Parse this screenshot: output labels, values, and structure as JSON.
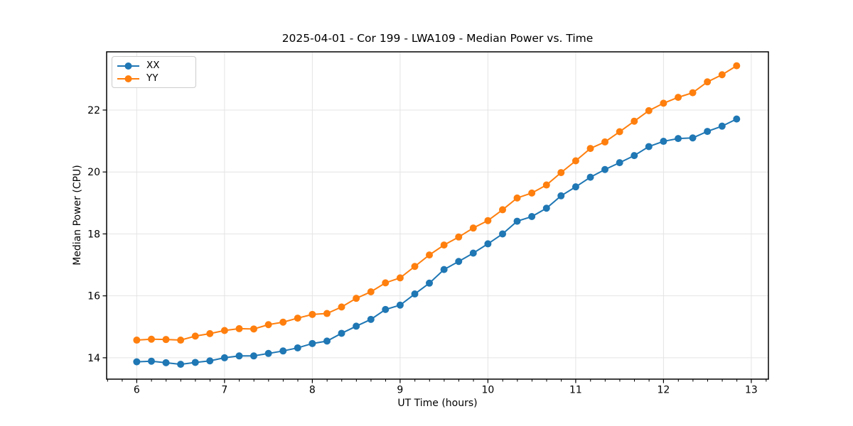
{
  "chart_data": {
    "type": "line",
    "title": "2025-04-01 - Cor 199 - LWA109 - Median Power vs. Time",
    "xlabel": "UT Time (hours)",
    "ylabel": "Median Power (CPU)",
    "xlim": [
      5.657,
      13.195
    ],
    "ylim": [
      13.31,
      23.88
    ],
    "x_ticks": [
      6,
      7,
      8,
      9,
      10,
      11,
      12,
      13
    ],
    "y_ticks": [
      14,
      16,
      18,
      20,
      22
    ],
    "x_minor_tick_step": 0.1667,
    "grid": true,
    "grid_color": "#e4e4e4",
    "legend_position": "upper-left",
    "marker": "circle",
    "x": [
      6.0,
      6.167,
      6.333,
      6.5,
      6.667,
      6.833,
      7.0,
      7.167,
      7.333,
      7.5,
      7.667,
      7.833,
      8.0,
      8.167,
      8.333,
      8.5,
      8.667,
      8.833,
      9.0,
      9.167,
      9.333,
      9.5,
      9.667,
      9.833,
      10.0,
      10.167,
      10.333,
      10.5,
      10.667,
      10.833,
      11.0,
      11.167,
      11.333,
      11.5,
      11.667,
      11.833,
      12.0,
      12.167,
      12.333,
      12.5,
      12.667,
      12.833
    ],
    "series": [
      {
        "name": "XX",
        "color": "#1f77b4",
        "values": [
          13.87,
          13.89,
          13.84,
          13.79,
          13.85,
          13.9,
          14.0,
          14.06,
          14.06,
          14.14,
          14.22,
          14.32,
          14.46,
          14.54,
          14.79,
          15.02,
          15.24,
          15.56,
          15.7,
          16.06,
          16.41,
          16.85,
          17.11,
          17.38,
          17.68,
          18.0,
          18.41,
          18.56,
          18.83,
          19.23,
          19.52,
          19.83,
          20.08,
          20.3,
          20.53,
          20.82,
          20.99,
          21.08,
          21.1,
          21.31,
          21.48,
          21.71
        ]
      },
      {
        "name": "YY",
        "color": "#ff7f0e",
        "values": [
          14.57,
          14.6,
          14.59,
          14.57,
          14.7,
          14.78,
          14.88,
          14.94,
          14.93,
          15.07,
          15.15,
          15.28,
          15.4,
          15.43,
          15.64,
          15.92,
          16.13,
          16.42,
          16.58,
          16.95,
          17.32,
          17.64,
          17.9,
          18.19,
          18.43,
          18.78,
          19.16,
          19.32,
          19.58,
          19.98,
          20.36,
          20.76,
          20.97,
          21.3,
          21.64,
          21.98,
          22.22,
          22.41,
          22.56,
          22.91,
          23.14,
          23.43
        ]
      }
    ]
  }
}
